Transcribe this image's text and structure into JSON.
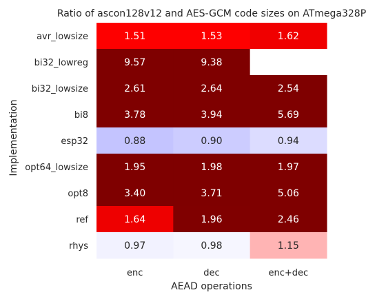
{
  "chart_data": {
    "type": "heatmap",
    "title": "Ratio of ascon128v12 and AES-GCM code sizes on ATmega328P",
    "xlabel": "AEAD operations",
    "ylabel": "Implementation",
    "x_categories": [
      "enc",
      "dec",
      "enc+dec"
    ],
    "y_categories": [
      "avr_lowsize",
      "bi32_lowreg",
      "bi32_lowsize",
      "bi8",
      "esp32",
      "opt64_lowsize",
      "opt8",
      "ref",
      "rhys"
    ],
    "values": [
      [
        1.51,
        1.53,
        1.62
      ],
      [
        9.57,
        9.38,
        null
      ],
      [
        2.61,
        2.64,
        2.54
      ],
      [
        3.78,
        3.94,
        5.69
      ],
      [
        0.88,
        0.9,
        0.94
      ],
      [
        1.95,
        1.98,
        1.97
      ],
      [
        3.4,
        3.71,
        5.06
      ],
      [
        1.64,
        1.96,
        2.46
      ],
      [
        0.97,
        0.98,
        1.15
      ]
    ],
    "value_labels": [
      [
        "1.51",
        "1.53",
        "1.62"
      ],
      [
        "9.57",
        "9.38",
        ""
      ],
      [
        "2.61",
        "2.64",
        "2.54"
      ],
      [
        "3.78",
        "3.94",
        "5.69"
      ],
      [
        "0.88",
        "0.90",
        "0.94"
      ],
      [
        "1.95",
        "1.98",
        "1.97"
      ],
      [
        "3.40",
        "3.71",
        "5.06"
      ],
      [
        "1.64",
        "1.96",
        "2.46"
      ],
      [
        "0.97",
        "0.98",
        "1.15"
      ]
    ],
    "colors": {
      "background": "#ffffff",
      "text_dark": "#262626",
      "text_light": "#ffffff"
    },
    "cell_colors": [
      [
        "#fe0000",
        "#fe0000",
        "#f00000"
      ],
      [
        "#7f0000",
        "#7f0000",
        "#ffffff"
      ],
      [
        "#7f0000",
        "#7f0000",
        "#7f0000"
      ],
      [
        "#7f0000",
        "#7f0000",
        "#7f0000"
      ],
      [
        "#c4c4ff",
        "#ccccff",
        "#dcdcff"
      ],
      [
        "#7f0000",
        "#7f0000",
        "#7f0000"
      ],
      [
        "#7f0000",
        "#7f0000",
        "#7f0000"
      ],
      [
        "#ee0000",
        "#800000",
        "#7f0000"
      ],
      [
        "#f2f2ff",
        "#f6f6ff",
        "#ffb4b4"
      ]
    ],
    "cell_text_colors": [
      [
        "#ffffff",
        "#ffffff",
        "#ffffff"
      ],
      [
        "#ffffff",
        "#ffffff",
        "#262626"
      ],
      [
        "#ffffff",
        "#ffffff",
        "#ffffff"
      ],
      [
        "#ffffff",
        "#ffffff",
        "#ffffff"
      ],
      [
        "#262626",
        "#262626",
        "#262626"
      ],
      [
        "#ffffff",
        "#ffffff",
        "#ffffff"
      ],
      [
        "#ffffff",
        "#ffffff",
        "#ffffff"
      ],
      [
        "#ffffff",
        "#ffffff",
        "#ffffff"
      ],
      [
        "#262626",
        "#262626",
        "#262626"
      ]
    ]
  }
}
